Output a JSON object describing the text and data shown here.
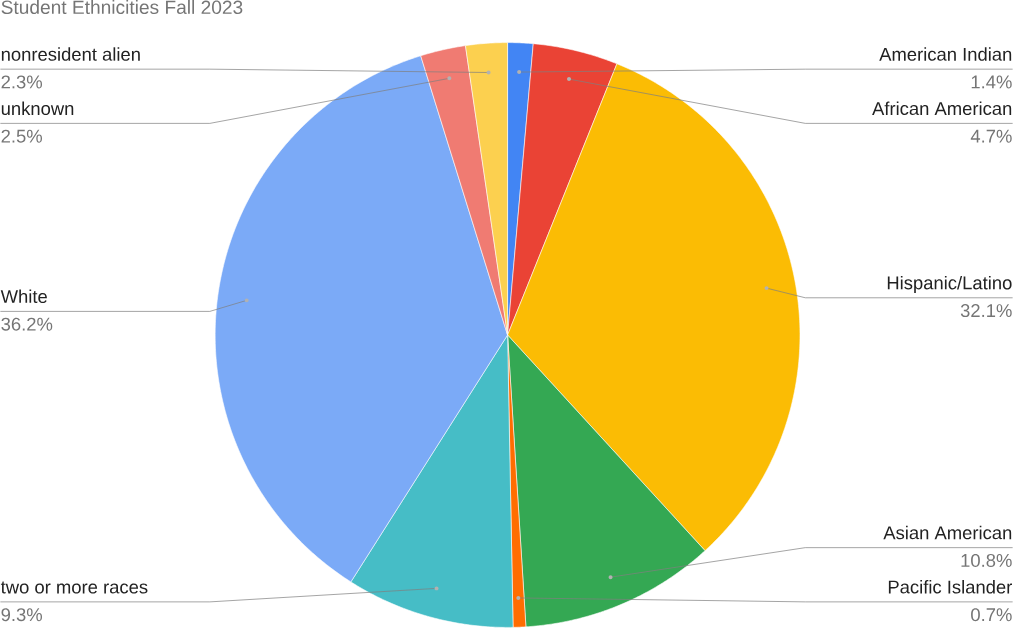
{
  "chart_data": {
    "type": "pie",
    "title": "Student Ethnicities Fall 2023",
    "categories": [
      "American Indian",
      "African American",
      "Hispanic/Latino",
      "Asian American",
      "Pacific Islander",
      "two or more races",
      "White",
      "unknown",
      "nonresident alien"
    ],
    "values": [
      1.4,
      4.7,
      32.1,
      10.8,
      0.7,
      9.3,
      36.2,
      2.5,
      2.3
    ],
    "value_labels": [
      "1.4%",
      "4.7%",
      "32.1%",
      "10.8%",
      "0.7%",
      "9.3%",
      "36.2%",
      "2.5%",
      "2.3%"
    ],
    "colors": [
      "#4285f4",
      "#ea4335",
      "#fbbc04",
      "#34a853",
      "#ff6d01",
      "#46bdc6",
      "#7baaf7",
      "#f07b72",
      "#fcd04f"
    ]
  }
}
